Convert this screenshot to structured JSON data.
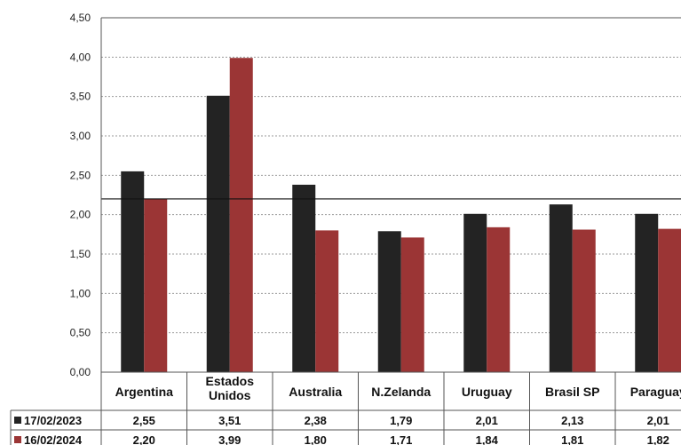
{
  "chart_data": {
    "type": "bar",
    "title": "",
    "categories": [
      [
        "Argentina"
      ],
      [
        "Estados",
        "Unidos"
      ],
      [
        "Australia"
      ],
      [
        "N.Zelanda"
      ],
      [
        "Uruguay"
      ],
      [
        "Brasil SP"
      ],
      [
        "Paraguay"
      ]
    ],
    "series": [
      {
        "name": "17/02/2023",
        "color": "#232323",
        "values": [
          2.55,
          3.51,
          2.38,
          1.79,
          2.01,
          2.13,
          2.01
        ],
        "labels": [
          "2,55",
          "3,51",
          "2,38",
          "1,79",
          "2,01",
          "2,13",
          "2,01"
        ]
      },
      {
        "name": "16/02/2024",
        "color": "#9b3535",
        "values": [
          2.2,
          3.99,
          1.8,
          1.71,
          1.84,
          1.81,
          1.82
        ],
        "labels": [
          "2,20",
          "3,99",
          "1,80",
          "1,71",
          "1,84",
          "1,81",
          "1,82"
        ]
      }
    ],
    "reference_line": 2.2,
    "ylim": [
      0,
      4.5
    ],
    "yticks": [
      "0,00",
      "0,50",
      "1,00",
      "1,50",
      "2,00",
      "2,50",
      "3,00",
      "3,50",
      "4,00",
      "4,50"
    ],
    "grid": true,
    "legend_placement": "data-table"
  }
}
